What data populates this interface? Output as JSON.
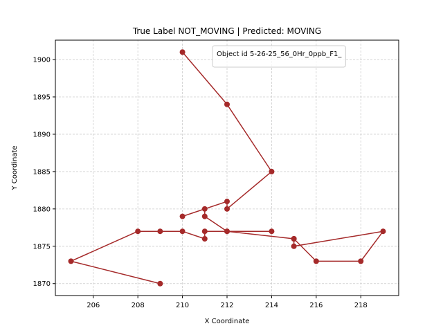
{
  "chart_data": {
    "type": "line",
    "title": "True Label NOT_MOVING | Predicted: MOVING",
    "xlabel": "X Coordinate",
    "ylabel": "Y Coordinate",
    "xlim": [
      204.3,
      219.7
    ],
    "ylim": [
      1868.4,
      1902.6
    ],
    "xticks": [
      206,
      208,
      210,
      212,
      214,
      216,
      218
    ],
    "yticks": [
      1870,
      1875,
      1880,
      1885,
      1890,
      1895,
      1900
    ],
    "grid": true,
    "legend_position": "top-right",
    "colors": {
      "series": "#a52a2a",
      "grid": "#cccccc"
    },
    "series": [
      {
        "name": "Object id 5-26-25_56_0Hr_0ppb_F1_",
        "x": [
          210,
          212,
          214,
          212,
          212,
          210,
          211,
          211,
          212,
          215,
          215,
          219,
          218,
          216,
          215,
          212,
          214,
          211,
          211,
          210,
          209,
          208,
          205,
          209
        ],
        "y": [
          1901,
          1894,
          1885,
          1880,
          1881,
          1879,
          1880,
          1879,
          1877,
          1876,
          1875,
          1877,
          1873,
          1873,
          1876,
          1877,
          1877,
          1877,
          1876,
          1877,
          1877,
          1877,
          1873,
          1870
        ]
      }
    ]
  }
}
